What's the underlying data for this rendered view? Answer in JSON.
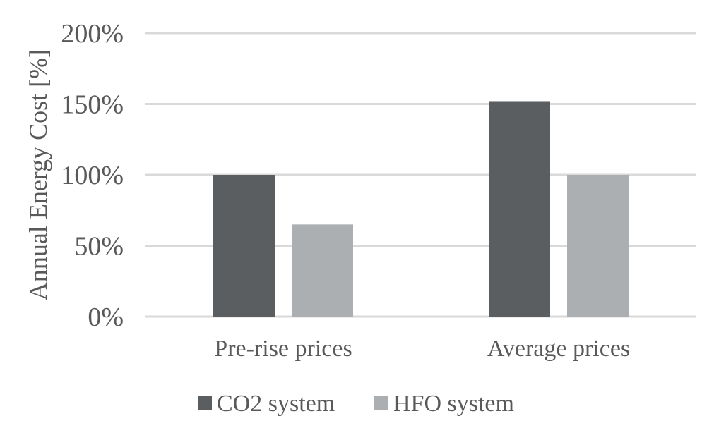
{
  "chart_data": {
    "type": "bar",
    "categories": [
      "Pre-rise prices",
      "Average prices"
    ],
    "series": [
      {
        "name": "CO2 system",
        "values": [
          100,
          152
        ],
        "color": "#5a5e60"
      },
      {
        "name": "HFO system",
        "values": [
          65,
          100
        ],
        "color": "#abafb1"
      }
    ],
    "ylabel": "Annual Energy Cost [%]",
    "ylim": [
      0,
      200
    ],
    "yticks": [
      {
        "value": 0,
        "label": "0%"
      },
      {
        "value": 50,
        "label": "50%"
      },
      {
        "value": 100,
        "label": "100%"
      },
      {
        "value": 150,
        "label": "150%"
      },
      {
        "value": 200,
        "label": "200%"
      }
    ],
    "grid": true,
    "legend_position": "bottom"
  }
}
